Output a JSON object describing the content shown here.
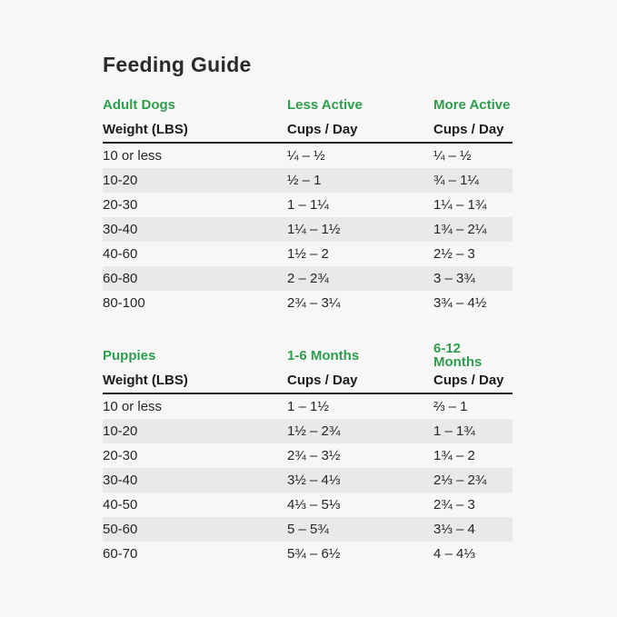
{
  "page": {
    "title": "Feeding Guide"
  },
  "colors": {
    "accent_green": "#2e9e4d",
    "row_stripe": "#e9e9e9",
    "background": "#f7f7f7",
    "text": "#262626"
  },
  "adult": {
    "header": {
      "group": "Adult Dogs",
      "col2": "Less Active",
      "col3": "More Active"
    },
    "subheader": {
      "weight": "Weight (LBS)",
      "cups": "Cups / Day"
    },
    "rows": [
      {
        "w": "10 or less",
        "a": "¼ – ½",
        "b": "¼ – ½"
      },
      {
        "w": "10-20",
        "a": "½ – 1",
        "b": "¾ – 1¼"
      },
      {
        "w": "20-30",
        "a": "1 – 1¼",
        "b": "1¼ – 1¾"
      },
      {
        "w": "30-40",
        "a": "1¼ – 1½",
        "b": "1¾ – 2¼"
      },
      {
        "w": "40-60",
        "a": "1½ – 2",
        "b": "2½ – 3"
      },
      {
        "w": "60-80",
        "a": "2 – 2¾",
        "b": "3 – 3¾"
      },
      {
        "w": "80-100",
        "a": "2¾ – 3¼",
        "b": "3¾ – 4½"
      }
    ]
  },
  "puppies": {
    "header": {
      "group": "Puppies",
      "col2": "1-6 Months",
      "col3": "6-12 Months"
    },
    "subheader": {
      "weight": "Weight (LBS)",
      "cups": "Cups / Day"
    },
    "rows": [
      {
        "w": "10 or less",
        "a": "1 – 1½",
        "b": "⅔ – 1"
      },
      {
        "w": "10-20",
        "a": "1½ – 2¾",
        "b": "1 – 1¾"
      },
      {
        "w": "20-30",
        "a": "2¾ – 3½",
        "b": "1¾ – 2"
      },
      {
        "w": "30-40",
        "a": "3½ – 4⅓",
        "b": "2⅓ – 2¾"
      },
      {
        "w": "40-50",
        "a": "4⅓ – 5⅓",
        "b": "2¾ – 3"
      },
      {
        "w": "50-60",
        "a": "5 – 5¾",
        "b": "3⅓ – 4"
      },
      {
        "w": "60-70",
        "a": "5¾ – 6½",
        "b": "4 – 4⅓"
      }
    ]
  },
  "chart_data": [
    {
      "type": "table",
      "title": "Adult Dogs",
      "columns": [
        "Weight (LBS)",
        "Less Active Cups / Day",
        "More Active Cups / Day"
      ],
      "rows": [
        [
          "10 or less",
          "¼ – ½",
          "¼ – ½"
        ],
        [
          "10-20",
          "½ – 1",
          "¾ – 1¼"
        ],
        [
          "20-30",
          "1 – 1¼",
          "1¼ – 1¾"
        ],
        [
          "30-40",
          "1¼ – 1½",
          "1¾ – 2¼"
        ],
        [
          "40-60",
          "1½ – 2",
          "2½ – 3"
        ],
        [
          "60-80",
          "2 – 2¾",
          "3 – 3¾"
        ],
        [
          "80-100",
          "2¾ – 3¼",
          "3¾ – 4½"
        ]
      ]
    },
    {
      "type": "table",
      "title": "Puppies",
      "columns": [
        "Weight (LBS)",
        "1-6 Months Cups / Day",
        "6-12 Months Cups / Day"
      ],
      "rows": [
        [
          "10 or less",
          "1 – 1½",
          "⅔ – 1"
        ],
        [
          "10-20",
          "1½ – 2¾",
          "1 – 1¾"
        ],
        [
          "20-30",
          "2¾ – 3½",
          "1¾ – 2"
        ],
        [
          "30-40",
          "3½ – 4⅓",
          "2⅓ – 2¾"
        ],
        [
          "40-50",
          "4⅓ – 5⅓",
          "2¾ – 3"
        ],
        [
          "50-60",
          "5 – 5¾",
          "3⅓ – 4"
        ],
        [
          "60-70",
          "5¾ – 6½",
          "4 – 4⅓"
        ]
      ]
    }
  ]
}
